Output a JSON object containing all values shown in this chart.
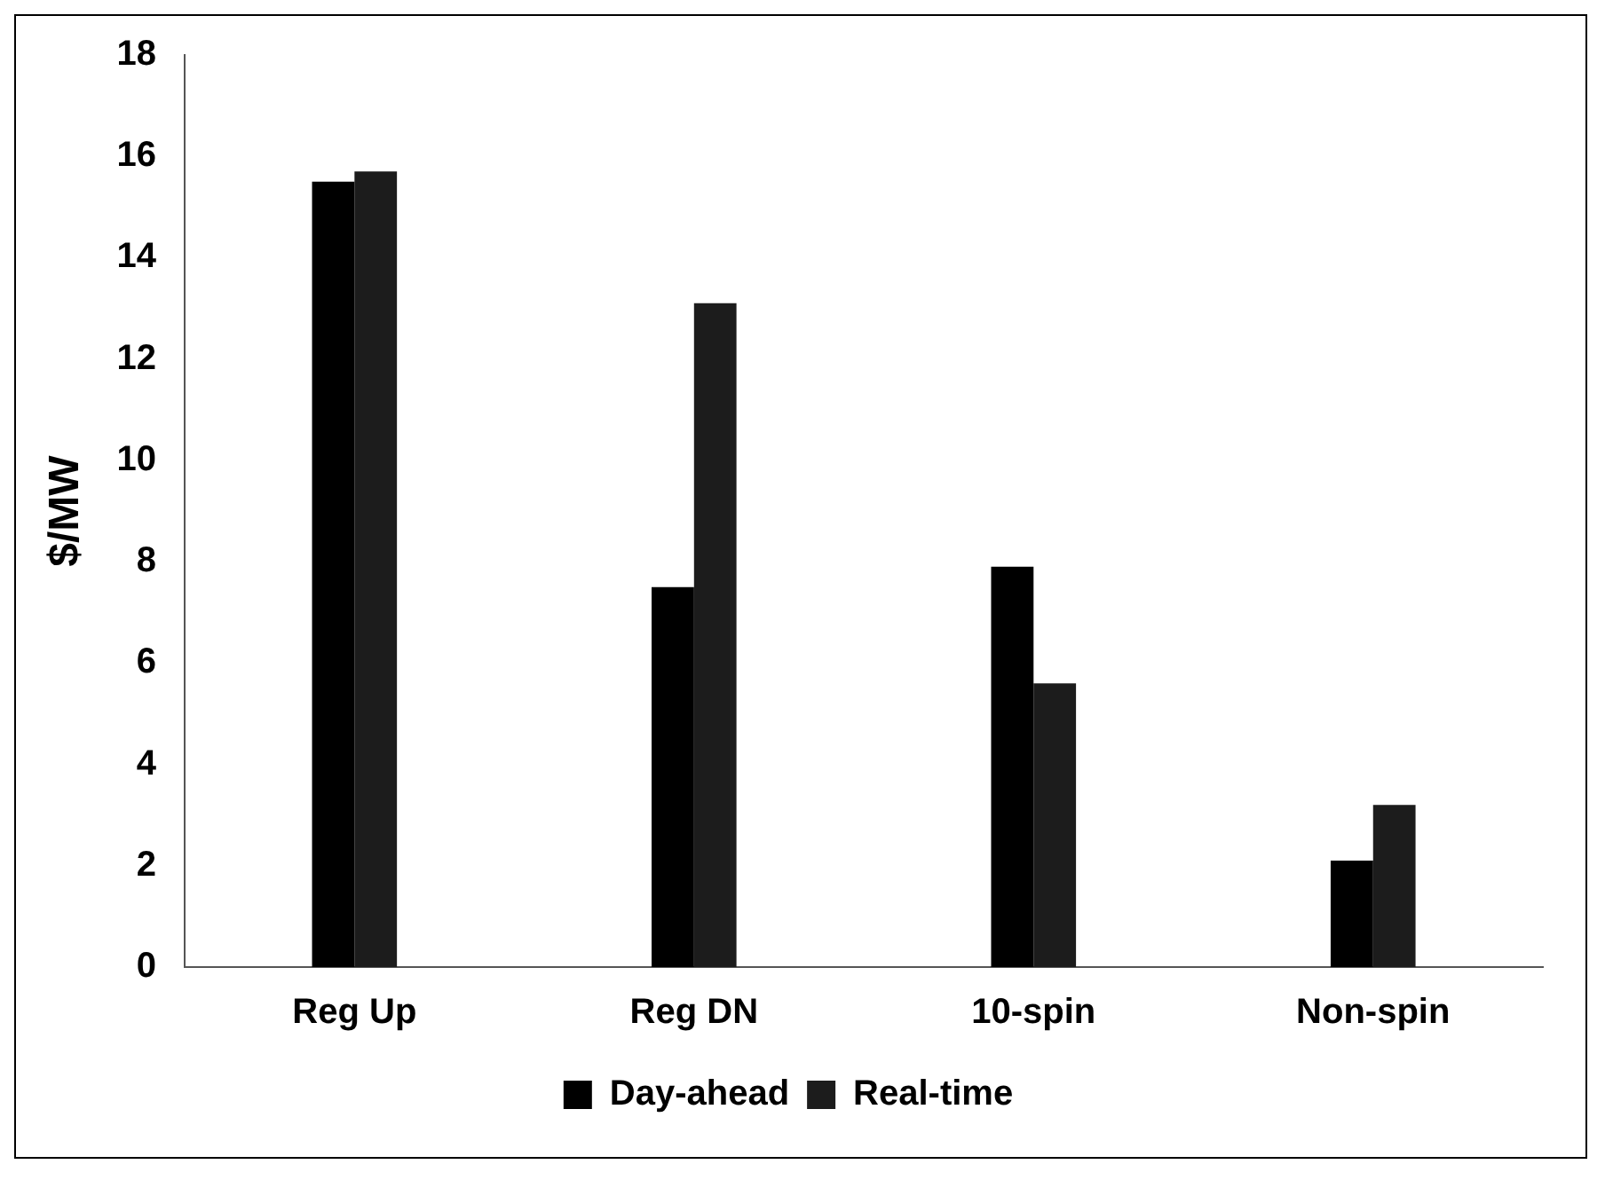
{
  "chart_data": {
    "type": "bar",
    "ylabel": "$/MW",
    "categories": [
      "Reg Up",
      "Reg DN",
      "10-spin",
      "Non-spin"
    ],
    "series": [
      {
        "name": "Day-ahead",
        "color": "#000000",
        "values": [
          15.5,
          7.5,
          7.9,
          2.1
        ]
      },
      {
        "name": "Real-time",
        "color": "#1c1c1c",
        "values": [
          15.7,
          13.1,
          5.6,
          3.2
        ]
      }
    ],
    "ylim": [
      0,
      18
    ],
    "yticks": [
      0,
      2,
      4,
      6,
      8,
      10,
      12,
      14,
      16,
      18
    ],
    "grid": false,
    "legend": "bottom"
  }
}
